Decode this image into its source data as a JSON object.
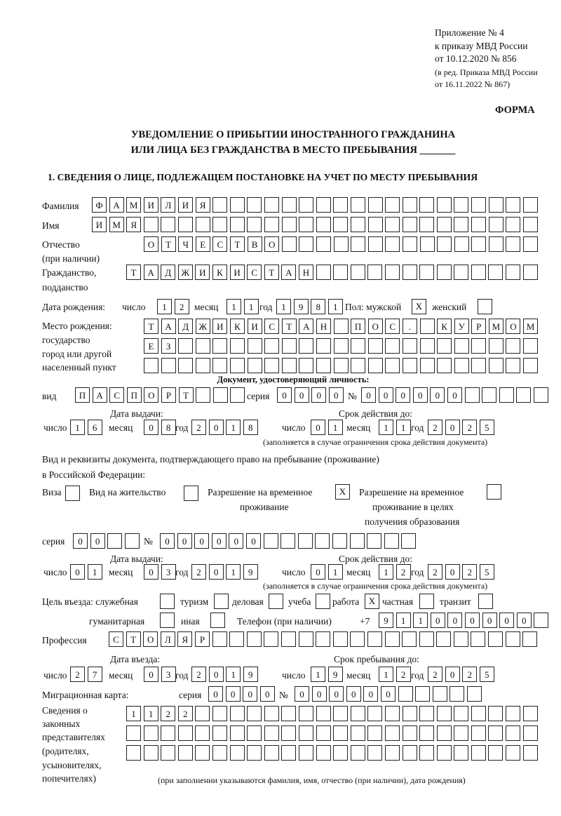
{
  "header": {
    "appendix": "Приложение № 4",
    "order": "к приказу МВД России",
    "order_date": "от 10.12.2020 № 856",
    "edition": "(в ред. Приказа МВД России",
    "edition_date": "от 16.11.2022 № 867)",
    "form_label": "ФОРМА",
    "title_line1": "УВЕДОМЛЕНИЕ О ПРИБЫТИИ ИНОСТРАННОГО ГРАЖДАНИНА",
    "title_line2": "ИЛИ ЛИЦА БЕЗ ГРАЖДАНСТВА В МЕСТО ПРЕБЫВАНИЯ _______"
  },
  "section1": {
    "heading": "1. СВЕДЕНИЯ О ЛИЦЕ, ПОДЛЕЖАЩЕМ ПОСТАНОВКЕ НА УЧЕТ ПО МЕСТУ ПРЕБЫВАНИЯ",
    "surname": {
      "label": "Фамилия",
      "value": "ФАМИЛИЯ"
    },
    "name": {
      "label": "Имя",
      "value": "ИМЯ"
    },
    "patronymic": {
      "label": "Отчество",
      "label2": "(при наличии)",
      "value": "ОТЧЕСТВО"
    },
    "citizenship": {
      "label": "Гражданство,",
      "label2": "подданство",
      "value": "ТАДЖИКИСТАН"
    },
    "birth_date": {
      "label": "Дата рождения:",
      "day_label": "число",
      "month_label": "месяц",
      "year_label": "год",
      "day": "12",
      "month": "11",
      "year": "1981"
    },
    "sex": {
      "label": "Пол: мужской",
      "male_mark": "X",
      "female_label": "женский",
      "female_mark": ""
    },
    "birth_place": {
      "label1": "Место рождения:",
      "label2": "государство",
      "label3": "город или другой",
      "label4": "населенный пункт",
      "row1": "ТАДЖИКИСТАН ПОС. КУРМОМБ",
      "row2": "ЕЗ",
      "row3": ""
    },
    "id_document": {
      "heading": "Документ, удостоверяющий личность:",
      "kind_label": "вид",
      "kind": "ПАСПОРТ",
      "series_label": "серия",
      "series": "0000",
      "number_label": "№",
      "number": "000000",
      "issue_label": "Дата выдачи:",
      "valid_label": "Срок действия до:",
      "day_label": "число",
      "month_label": "месяц",
      "year_label": "год",
      "issue_day": "16",
      "issue_month": "08",
      "issue_year": "2018",
      "valid_day": "01",
      "valid_month": "11",
      "valid_year": "2025",
      "note": "(заполняется в случае ограничения срока действия документа)"
    },
    "stay_document": {
      "intro1": "Вид и реквизиты документа, подтверждающего право на пребывание (проживание)",
      "intro2": "в Российской Федерации:",
      "visa_label": "Виза",
      "visa_mark": "",
      "residence_label": "Вид на жительство",
      "residence_mark": "",
      "trp_label1": "Разрешение на временное",
      "trp_label2": "проживание",
      "trp_mark": "X",
      "trp_edu_label1": "Разрешение на временное",
      "trp_edu_label2": "проживание в целях",
      "trp_edu_label3": "получения образования",
      "trp_edu_mark": "",
      "series_label": "серия",
      "series": "00",
      "number_label": "№",
      "number": "000000",
      "issue_label": "Дата выдачи:",
      "valid_label": "Срок действия до:",
      "day_label": "число",
      "month_label": "месяц",
      "year_label": "год",
      "issue_day": "01",
      "issue_month": "03",
      "issue_year": "2019",
      "valid_day": "01",
      "valid_month": "12",
      "valid_year": "2025",
      "note": "(заполняется в случае ограничения срока действия документа)"
    },
    "purpose": {
      "label": "Цель въезда: служебная",
      "official": "",
      "tourism_label": "туризм",
      "tourism": "",
      "business_label": "деловая",
      "business": "",
      "study_label": "учеба",
      "study": "",
      "work_label": "работа",
      "work": "X",
      "private_label": "частная",
      "private": "",
      "transit_label": "транзит",
      "transit": "",
      "humanitarian_label": "гуманитарная",
      "humanitarian": "",
      "other_label": "иная",
      "other": ""
    },
    "phone": {
      "label": "Телефон (при наличии)",
      "prefix": "+7",
      "value": "911000000"
    },
    "profession": {
      "label": "Профессия",
      "value": "СТОЛЯР"
    },
    "entry": {
      "entry_label": "Дата въезда:",
      "stay_label": "Срок пребывания до:",
      "day_label": "число",
      "month_label": "месяц",
      "year_label": "год",
      "entry_day": "27",
      "entry_month": "03",
      "entry_year": "2019",
      "stay_day": "19",
      "stay_month": "12",
      "stay_year": "2025"
    },
    "migration_card": {
      "label": "Миграционная карта:",
      "series_label": "серия",
      "series": "0000",
      "number_label": "№",
      "number": "000000"
    },
    "representatives": {
      "label1": "Сведения о",
      "label2": "законных",
      "label3": "представителях",
      "label4": "(родителях,",
      "label5": "усыновителях,",
      "label6": "попечителях)",
      "row1": "1122",
      "row2": "",
      "row3": "",
      "note": "(при заполнении указываются фамилия, имя, отчество (при наличии), дата рождения)"
    }
  }
}
